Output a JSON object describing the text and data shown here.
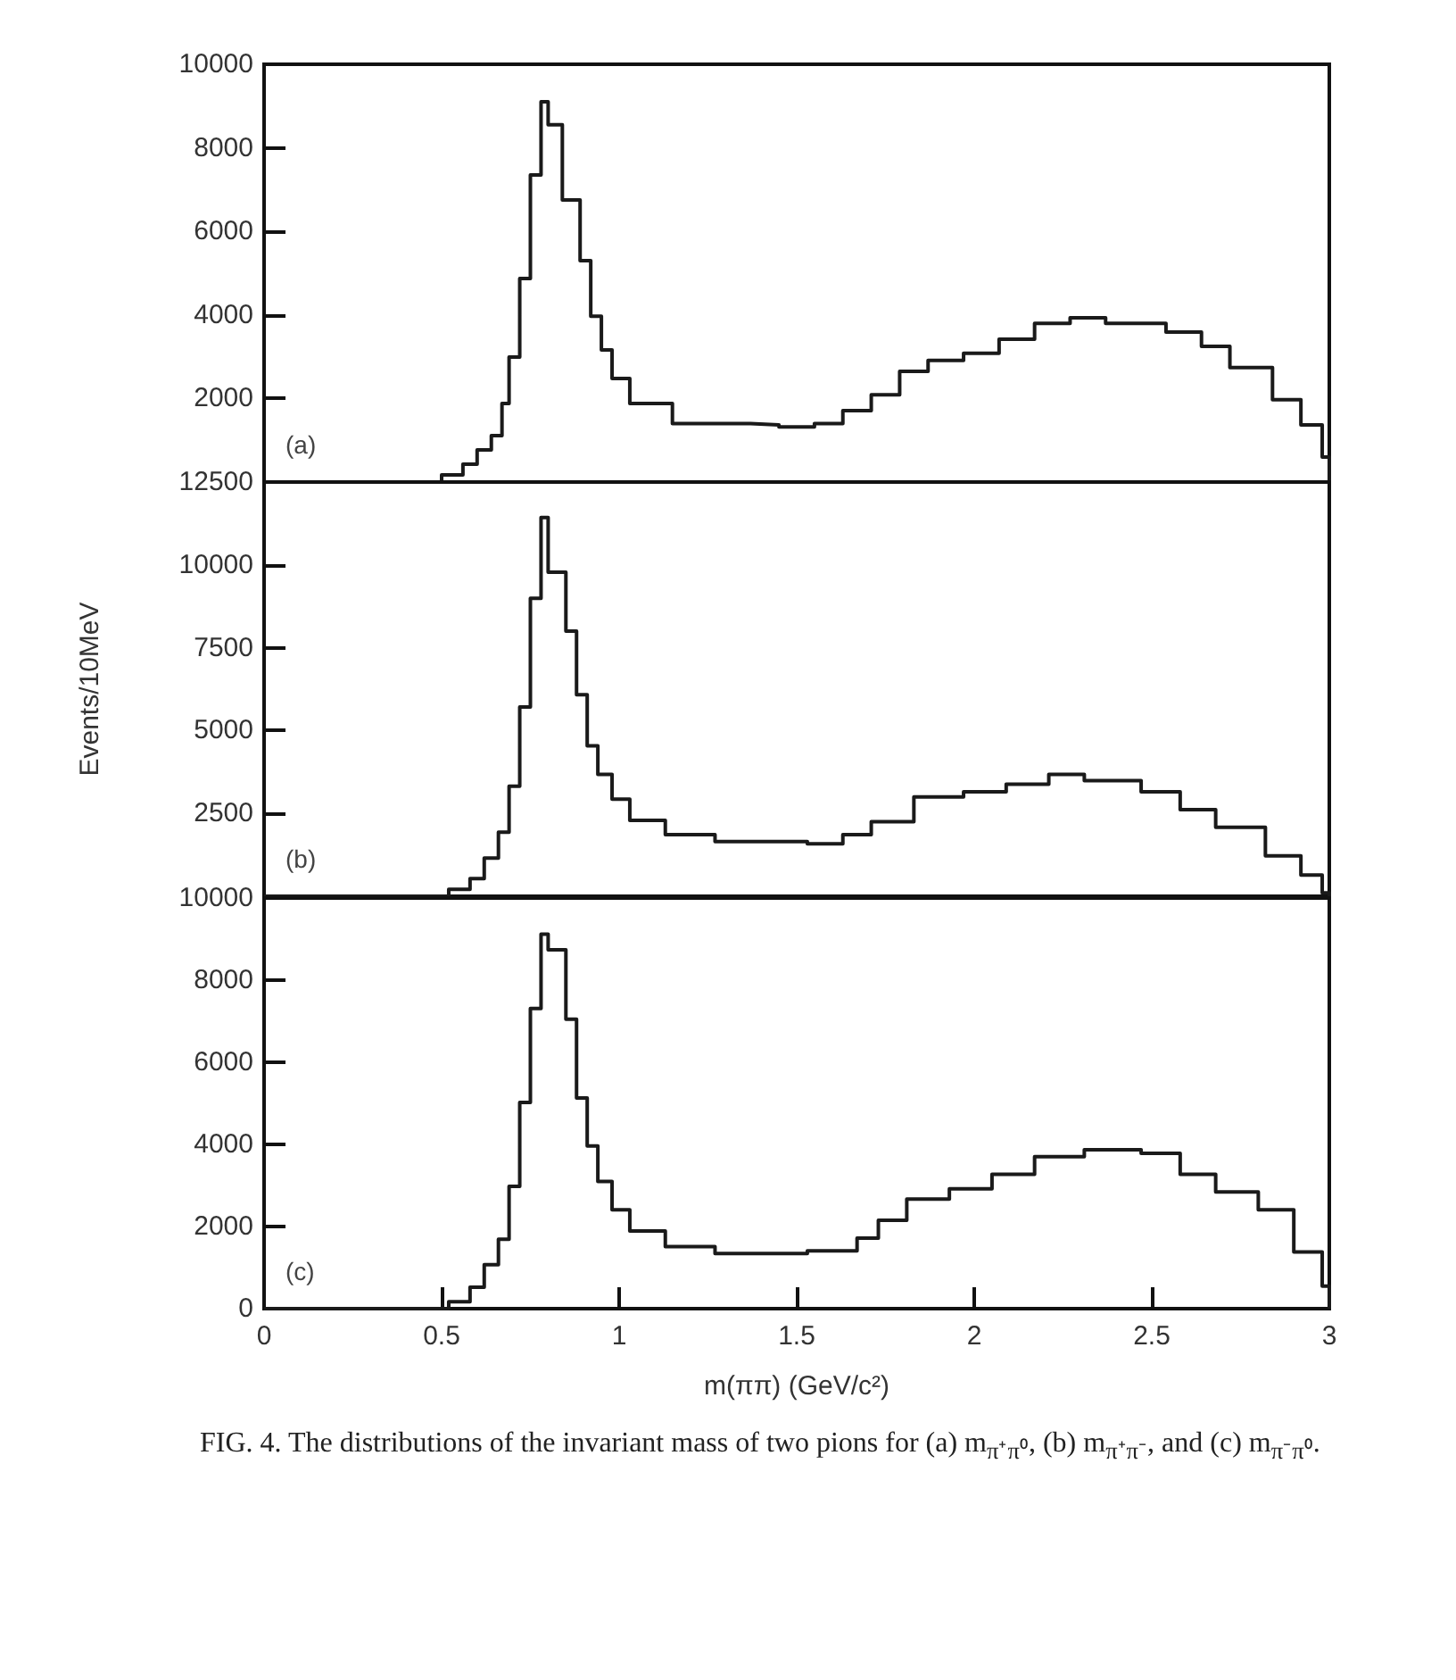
{
  "chart_data": [
    {
      "type": "step",
      "x": [
        0,
        0.42,
        0.5,
        0.56,
        0.6,
        0.64,
        0.67,
        0.69,
        0.72,
        0.75,
        0.78,
        0.8,
        0.84,
        0.89,
        0.92,
        0.95,
        0.98,
        1.03,
        1.15,
        1.37,
        1.45,
        1.55,
        1.63,
        1.71,
        1.79,
        1.87,
        1.97,
        2.07,
        2.17,
        2.27,
        2.37,
        2.54,
        2.64,
        2.72,
        2.84,
        2.92,
        2.98,
        3.0
      ],
      "series": [
        {
          "color": "#1a1a1a",
          "values": [
            0,
            0,
            170,
            430,
            770,
            1110,
            1880,
            2990,
            4870,
            7350,
            9100,
            8550,
            6750,
            5300,
            3970,
            3160,
            2480,
            1880,
            1400,
            1370,
            1320,
            1400,
            1710,
            2090,
            2650,
            2910,
            3080,
            3420,
            3800,
            3930,
            3800,
            3590,
            3250,
            2740,
            1970,
            1370,
            600,
            0
          ]
        }
      ],
      "xlim": [
        0,
        3
      ],
      "ylim": [
        0,
        10000
      ],
      "yticks": [
        {
          "value": 0,
          "label": null
        },
        2000,
        4000,
        6000,
        8000,
        10000
      ],
      "tick_labels": "y",
      "grid": false,
      "annotations": [
        "(a)"
      ]
    },
    {
      "type": "step",
      "x": [
        0,
        0.42,
        0.52,
        0.58,
        0.62,
        0.66,
        0.69,
        0.72,
        0.75,
        0.78,
        0.8,
        0.85,
        0.88,
        0.91,
        0.94,
        0.98,
        1.03,
        1.13,
        1.27,
        1.53,
        1.63,
        1.71,
        1.83,
        1.97,
        2.09,
        2.21,
        2.31,
        2.47,
        2.58,
        2.68,
        2.82,
        2.92,
        2.98,
        3.0
      ],
      "series": [
        {
          "color": "#1a1a1a",
          "values": [
            0,
            0,
            210,
            530,
            1150,
            1930,
            3320,
            5710,
            8990,
            11430,
            9780,
            8000,
            6080,
            4540,
            3680,
            2930,
            2290,
            1860,
            1650,
            1580,
            1860,
            2250,
            3000,
            3150,
            3380,
            3680,
            3490,
            3150,
            2610,
            2080,
            1220,
            640,
            100,
            0
          ]
        }
      ],
      "xlim": [
        0,
        3
      ],
      "ylim": [
        0,
        12500
      ],
      "yticks": [
        {
          "value": 0,
          "label": null
        },
        2500,
        5000,
        7500,
        10000,
        12500
      ],
      "ylabel": "Events/10MeV",
      "tick_labels": "y",
      "grid": false,
      "annotations": [
        "(b)"
      ]
    },
    {
      "type": "step",
      "x": [
        0,
        0.42,
        0.52,
        0.58,
        0.62,
        0.66,
        0.69,
        0.72,
        0.75,
        0.78,
        0.8,
        0.85,
        0.88,
        0.91,
        0.94,
        0.98,
        1.03,
        1.13,
        1.27,
        1.53,
        1.67,
        1.73,
        1.81,
        1.93,
        2.05,
        2.17,
        2.31,
        2.47,
        2.58,
        2.68,
        2.8,
        2.9,
        2.98,
        3.0
      ],
      "series": [
        {
          "color": "#1a1a1a",
          "values": [
            0,
            0,
            170,
            520,
            1070,
            1690,
            2980,
            5020,
            7310,
            9120,
            8740,
            7050,
            5130,
            3960,
            3100,
            2410,
            1890,
            1510,
            1340,
            1410,
            1720,
            2150,
            2670,
            2920,
            3270,
            3700,
            3870,
            3780,
            3270,
            2840,
            2410,
            1380,
            550,
            0
          ]
        }
      ],
      "xlim": [
        0,
        3
      ],
      "xticks": [
        0,
        0.5,
        1,
        1.5,
        2,
        2.5,
        3
      ],
      "ylim": [
        0,
        10000
      ],
      "yticks": [
        0,
        2000,
        4000,
        6000,
        8000,
        10000
      ],
      "xlabel": "m(ππ) (GeV/c²)",
      "grid": false,
      "annotations": [
        "(c)",
        "FIG. 4. The distributions of the invariant mass of two pions for (a) m$_{π⁺π⁰}$, (b) m$_{π⁺π⁻}$, and (c) m$_{π⁻π⁰}$."
      ]
    }
  ]
}
